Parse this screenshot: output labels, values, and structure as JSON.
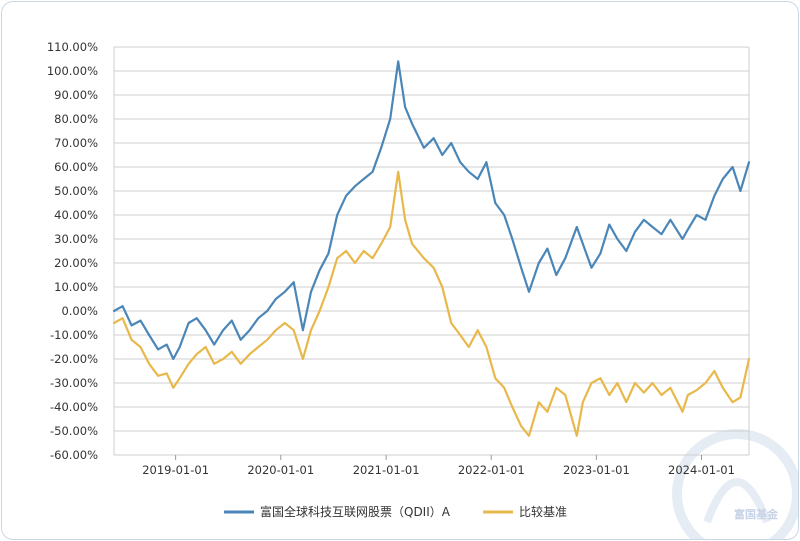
{
  "chart_data": {
    "type": "line",
    "title": "",
    "xlabel": "",
    "ylabel": "",
    "ylim": [
      -60,
      110
    ],
    "y_ticks": [
      "110.00%",
      "100.00%",
      "90.00%",
      "80.00%",
      "70.00%",
      "60.00%",
      "50.00%",
      "40.00%",
      "30.00%",
      "20.00%",
      "10.00%",
      "0.00%",
      "-10.00%",
      "-20.00%",
      "-30.00%",
      "-40.00%",
      "-50.00%",
      "-60.00%"
    ],
    "x_ticks": [
      "2019-01-01",
      "2020-01-01",
      "2021-01-01",
      "2022-01-01",
      "2023-01-01",
      "2024-01-01"
    ],
    "x_range": [
      "2018-06-01",
      "2024-06-14"
    ],
    "grid": true,
    "legend_position": "bottom",
    "series": [
      {
        "name": "富国全球科技互联网股票（QDII）A",
        "color": "#4a86b8",
        "x": [
          "2018-06-01",
          "2018-07-01",
          "2018-08-01",
          "2018-09-01",
          "2018-10-01",
          "2018-11-01",
          "2018-12-01",
          "2018-12-24",
          "2019-01-15",
          "2019-02-15",
          "2019-03-15",
          "2019-04-15",
          "2019-05-15",
          "2019-06-15",
          "2019-07-15",
          "2019-08-15",
          "2019-09-15",
          "2019-10-15",
          "2019-11-15",
          "2019-12-15",
          "2020-01-15",
          "2020-02-15",
          "2020-03-18",
          "2020-04-15",
          "2020-05-15",
          "2020-06-15",
          "2020-07-15",
          "2020-08-15",
          "2020-09-15",
          "2020-10-15",
          "2020-11-15",
          "2020-12-15",
          "2021-01-15",
          "2021-02-12",
          "2021-03-08",
          "2021-04-01",
          "2021-05-12",
          "2021-06-15",
          "2021-07-15",
          "2021-08-15",
          "2021-09-15",
          "2021-10-15",
          "2021-11-15",
          "2021-12-15",
          "2022-01-15",
          "2022-02-15",
          "2022-03-15",
          "2022-04-15",
          "2022-05-12",
          "2022-06-15",
          "2022-07-15",
          "2022-08-15",
          "2022-09-15",
          "2022-10-25",
          "2022-11-15",
          "2022-12-15",
          "2023-01-15",
          "2023-02-15",
          "2023-03-15",
          "2023-04-15",
          "2023-05-15",
          "2023-06-15",
          "2023-07-15",
          "2023-08-15",
          "2023-09-15",
          "2023-10-27",
          "2023-11-15",
          "2023-12-15",
          "2024-01-15",
          "2024-02-15",
          "2024-03-15",
          "2024-04-18",
          "2024-05-15",
          "2024-06-14"
        ],
        "values": [
          0,
          2,
          -6,
          -4,
          -10,
          -16,
          -14,
          -20,
          -15,
          -5,
          -3,
          -8,
          -14,
          -8,
          -4,
          -12,
          -8,
          -3,
          0,
          5,
          8,
          12,
          -8,
          8,
          17,
          24,
          40,
          48,
          52,
          55,
          58,
          68,
          80,
          104,
          85,
          78,
          68,
          72,
          65,
          70,
          62,
          58,
          55,
          62,
          45,
          40,
          30,
          18,
          8,
          20,
          26,
          15,
          22,
          35,
          28,
          18,
          24,
          36,
          30,
          25,
          33,
          38,
          35,
          32,
          38,
          30,
          34,
          40,
          38,
          48,
          55,
          60,
          50,
          62
        ]
      },
      {
        "name": "比较基准",
        "color": "#e8b84a",
        "x": [
          "2018-06-01",
          "2018-07-01",
          "2018-08-01",
          "2018-09-01",
          "2018-10-01",
          "2018-11-01",
          "2018-12-01",
          "2018-12-24",
          "2019-01-15",
          "2019-02-15",
          "2019-03-15",
          "2019-04-15",
          "2019-05-15",
          "2019-06-15",
          "2019-07-15",
          "2019-08-15",
          "2019-09-15",
          "2019-10-15",
          "2019-11-15",
          "2019-12-15",
          "2020-01-15",
          "2020-02-15",
          "2020-03-18",
          "2020-04-15",
          "2020-05-15",
          "2020-06-15",
          "2020-07-15",
          "2020-08-15",
          "2020-09-15",
          "2020-10-15",
          "2020-11-15",
          "2020-12-15",
          "2021-01-15",
          "2021-02-12",
          "2021-03-08",
          "2021-04-01",
          "2021-05-12",
          "2021-06-15",
          "2021-07-15",
          "2021-08-15",
          "2021-09-15",
          "2021-10-15",
          "2021-11-15",
          "2021-12-15",
          "2022-01-15",
          "2022-02-15",
          "2022-03-15",
          "2022-04-15",
          "2022-05-12",
          "2022-06-15",
          "2022-07-15",
          "2022-08-15",
          "2022-09-15",
          "2022-10-25",
          "2022-11-15",
          "2022-12-15",
          "2023-01-15",
          "2023-02-15",
          "2023-03-15",
          "2023-04-15",
          "2023-05-15",
          "2023-06-15",
          "2023-07-15",
          "2023-08-15",
          "2023-09-15",
          "2023-10-27",
          "2023-11-15",
          "2023-12-15",
          "2024-01-15",
          "2024-02-15",
          "2024-03-15",
          "2024-04-18",
          "2024-05-15",
          "2024-06-14"
        ],
        "values": [
          -5,
          -3,
          -12,
          -15,
          -22,
          -27,
          -26,
          -32,
          -28,
          -22,
          -18,
          -15,
          -22,
          -20,
          -17,
          -22,
          -18,
          -15,
          -12,
          -8,
          -5,
          -8,
          -20,
          -8,
          0,
          10,
          22,
          25,
          20,
          25,
          22,
          28,
          35,
          58,
          38,
          28,
          22,
          18,
          10,
          -5,
          -10,
          -15,
          -8,
          -15,
          -28,
          -32,
          -40,
          -48,
          -52,
          -38,
          -42,
          -32,
          -35,
          -52,
          -38,
          -30,
          -28,
          -35,
          -30,
          -38,
          -30,
          -34,
          -30,
          -35,
          -32,
          -42,
          -35,
          -33,
          -30,
          -25,
          -32,
          -38,
          -36,
          -20
        ]
      }
    ]
  },
  "watermark": {
    "text": "富国基金",
    "color": "#c7d3e6"
  }
}
